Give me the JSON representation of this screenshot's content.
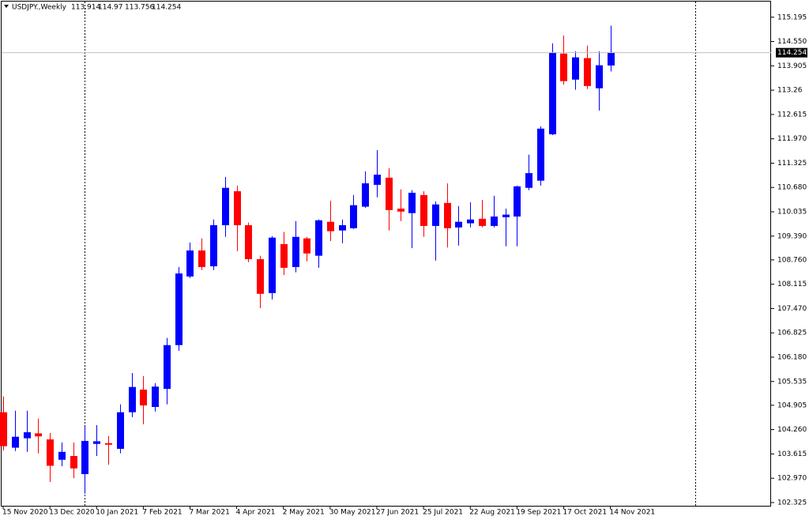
{
  "chart_data": {
    "type": "candlestick",
    "title": "USDJPY.,Weekly",
    "categories": [
      "15 Nov 2020",
      null,
      null,
      null,
      "13 Dec 2020",
      null,
      null,
      null,
      "10 Jan 2021",
      null,
      null,
      null,
      "7 Feb 2021",
      null,
      null,
      null,
      "7 Mar 2021",
      null,
      null,
      null,
      "4 Apr 2021",
      null,
      null,
      null,
      "2 May 2021",
      null,
      null,
      null,
      "30 May 2021",
      null,
      null,
      null,
      "27 Jun 2021",
      null,
      null,
      null,
      "25 Jul 2021",
      null,
      null,
      null,
      "22 Aug 2021",
      null,
      null,
      null,
      "19 Sep 2021",
      null,
      null,
      null,
      "17 Oct 2021",
      null,
      null,
      null,
      "14 Nov 2021"
    ],
    "open": [
      104.72,
      103.78,
      104.03,
      104.16,
      104.0,
      103.46,
      103.56,
      103.08,
      103.88,
      103.9,
      103.75,
      104.72,
      105.32,
      104.86,
      105.34,
      106.5,
      108.32,
      109.01,
      108.59,
      109.68,
      110.58,
      109.68,
      108.78,
      107.88,
      109.18,
      108.57,
      109.33,
      108.87,
      109.77,
      109.54,
      109.6,
      110.17,
      110.75,
      110.94,
      110.12,
      110.0,
      110.48,
      109.66,
      110.27,
      109.62,
      109.73,
      109.85,
      109.66,
      109.89,
      109.91,
      110.67,
      110.86,
      112.09,
      114.23,
      113.54,
      114.11,
      113.31,
      113.914
    ],
    "high": [
      105.14,
      104.76,
      104.76,
      104.55,
      104.17,
      103.92,
      103.92,
      104.34,
      104.38,
      104.09,
      104.93,
      105.76,
      105.68,
      105.49,
      106.69,
      108.57,
      109.22,
      109.33,
      109.83,
      110.96,
      110.73,
      109.75,
      108.87,
      109.39,
      109.5,
      109.79,
      109.37,
      109.83,
      110.33,
      109.83,
      110.48,
      111.11,
      111.67,
      111.19,
      110.63,
      110.61,
      110.58,
      110.31,
      110.79,
      110.19,
      110.29,
      110.35,
      110.46,
      110.12,
      110.73,
      111.55,
      112.3,
      114.5,
      114.71,
      114.29,
      114.44,
      114.29,
      114.97
    ],
    "low": [
      103.71,
      103.69,
      103.67,
      103.63,
      102.87,
      103.29,
      102.97,
      102.56,
      103.56,
      103.33,
      103.63,
      104.59,
      104.4,
      104.74,
      104.93,
      106.35,
      108.28,
      108.49,
      108.49,
      109.37,
      108.99,
      108.7,
      107.48,
      107.71,
      108.36,
      108.43,
      108.72,
      108.55,
      109.26,
      109.2,
      109.58,
      110.14,
      110.42,
      109.54,
      109.79,
      109.07,
      109.37,
      108.74,
      109.09,
      109.14,
      109.62,
      109.62,
      109.62,
      109.12,
      109.12,
      110.61,
      110.73,
      112.07,
      113.41,
      113.27,
      113.29,
      112.72,
      113.756
    ],
    "close": [
      103.82,
      104.07,
      104.19,
      104.08,
      103.3,
      103.67,
      103.23,
      103.96,
      103.95,
      103.86,
      104.72,
      105.39,
      104.9,
      105.4,
      106.5,
      108.4,
      109.01,
      108.57,
      109.68,
      110.67,
      109.68,
      108.78,
      107.86,
      109.35,
      108.55,
      109.37,
      108.93,
      109.81,
      109.52,
      109.68,
      110.21,
      110.79,
      111.02,
      110.08,
      110.04,
      110.54,
      109.66,
      110.23,
      109.6,
      109.77,
      109.83,
      109.66,
      109.91,
      109.96,
      110.71,
      111.06,
      112.24,
      114.25,
      113.5,
      114.13,
      113.37,
      113.92,
      114.254
    ],
    "up_color": "#0000ff",
    "down_color": "#ff0000",
    "ylim": [
      102.24,
      115.63
    ],
    "yticks": [
      115.195,
      {
        "value": 114.55,
        "label": "114.550"
      },
      113.905,
      113.26,
      112.615,
      {
        "value": 111.97,
        "label": "111.970"
      },
      111.325,
      {
        "value": 110.68,
        "label": "110.680"
      },
      110.035,
      {
        "value": 109.39,
        "label": "109.390"
      },
      {
        "value": 108.76,
        "label": "108.760"
      },
      108.115,
      {
        "value": 107.47,
        "label": "107.470"
      },
      106.825,
      {
        "value": 106.18,
        "label": "106.180"
      },
      105.535,
      104.905,
      {
        "value": 104.26,
        "label": "104.260"
      },
      103.615,
      {
        "value": 102.97,
        "label": "102.970"
      },
      102.325
    ]
  }
}
